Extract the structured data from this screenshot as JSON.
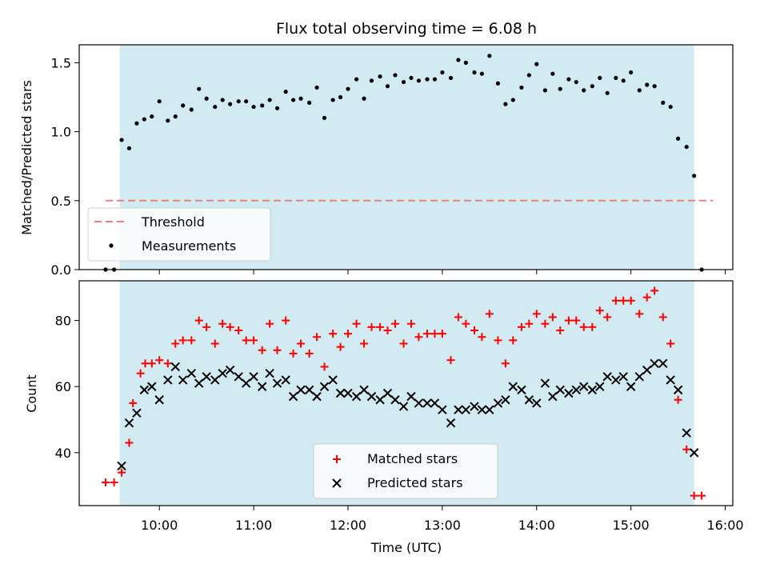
{
  "chart_data": {
    "type": "scatter",
    "title": "Flux total observing time = 6.08 h",
    "xlabel": "Time (UTC)",
    "x_ticks": [
      "10:00",
      "11:00",
      "12:00",
      "13:00",
      "14:00",
      "15:00",
      "16:00"
    ],
    "x_range_hours": [
      9.15,
      16.08
    ],
    "shaded_window_hours": [
      9.58,
      15.67
    ],
    "colors": {
      "shade": "#add8e6",
      "threshold": "#f08080",
      "matched": "#ff0000",
      "predicted": "#000000",
      "measurement": "#000000"
    },
    "panels": [
      {
        "ylabel": "Matched/Predicted stars",
        "ylim": [
          0,
          1.63
        ],
        "y_ticks": [
          "0.0",
          "0.5",
          "1.0",
          "1.5"
        ],
        "legend_position": "lower-left",
        "threshold": {
          "name": "Threshold",
          "value": 0.5,
          "x_range_hours": [
            9.43,
            15.87
          ]
        },
        "series": [
          {
            "name": "Measurements",
            "marker": "dot",
            "x_hours": [
              9.43,
              9.52,
              9.6,
              9.68,
              9.76,
              9.84,
              9.92,
              10.0,
              10.09,
              10.17,
              10.25,
              10.34,
              10.42,
              10.5,
              10.59,
              10.67,
              10.75,
              10.84,
              10.92,
              11.0,
              11.09,
              11.17,
              11.25,
              11.34,
              11.42,
              11.5,
              11.59,
              11.67,
              11.75,
              11.84,
              11.92,
              12.0,
              12.09,
              12.17,
              12.25,
              12.34,
              12.42,
              12.5,
              12.59,
              12.67,
              12.75,
              12.84,
              12.92,
              13.0,
              13.09,
              13.17,
              13.25,
              13.34,
              13.42,
              13.5,
              13.59,
              13.67,
              13.75,
              13.84,
              13.92,
              14.0,
              14.09,
              14.17,
              14.25,
              14.34,
              14.42,
              14.5,
              14.59,
              14.67,
              14.75,
              14.84,
              14.92,
              15.0,
              15.09,
              15.17,
              15.25,
              15.34,
              15.42,
              15.5,
              15.59,
              15.67,
              15.75
            ],
            "values": [
              0.0,
              0.0,
              0.94,
              0.88,
              1.06,
              1.09,
              1.11,
              1.22,
              1.08,
              1.11,
              1.19,
              1.16,
              1.31,
              1.24,
              1.18,
              1.23,
              1.2,
              1.22,
              1.22,
              1.18,
              1.19,
              1.23,
              1.17,
              1.29,
              1.23,
              1.24,
              1.21,
              1.32,
              1.1,
              1.23,
              1.25,
              1.31,
              1.38,
              1.24,
              1.37,
              1.4,
              1.33,
              1.41,
              1.36,
              1.39,
              1.37,
              1.38,
              1.38,
              1.43,
              1.39,
              1.52,
              1.5,
              1.43,
              1.42,
              1.55,
              1.35,
              1.2,
              1.23,
              1.32,
              1.41,
              1.49,
              1.3,
              1.42,
              1.31,
              1.38,
              1.36,
              1.3,
              1.33,
              1.39,
              1.28,
              1.39,
              1.37,
              1.43,
              1.3,
              1.34,
              1.33,
              1.21,
              1.18,
              0.95,
              0.89,
              0.68,
              0.0
            ]
          }
        ]
      },
      {
        "ylabel": "Count",
        "ylim": [
          24,
          92
        ],
        "y_ticks": [
          "40",
          "60",
          "80"
        ],
        "legend_position": "lower-center",
        "series": [
          {
            "name": "Matched stars",
            "marker": "plus",
            "x_hours": [
              9.43,
              9.52,
              9.6,
              9.68,
              9.72,
              9.8,
              9.85,
              9.92,
              10.0,
              10.09,
              10.17,
              10.25,
              10.34,
              10.42,
              10.5,
              10.59,
              10.67,
              10.75,
              10.84,
              10.92,
              11.0,
              11.09,
              11.17,
              11.25,
              11.34,
              11.42,
              11.5,
              11.59,
              11.67,
              11.75,
              11.84,
              11.92,
              12.0,
              12.09,
              12.17,
              12.25,
              12.34,
              12.42,
              12.5,
              12.59,
              12.67,
              12.75,
              12.84,
              12.92,
              13.0,
              13.09,
              13.17,
              13.25,
              13.34,
              13.42,
              13.5,
              13.59,
              13.67,
              13.75,
              13.84,
              13.92,
              14.0,
              14.09,
              14.17,
              14.25,
              14.34,
              14.42,
              14.5,
              14.59,
              14.67,
              14.75,
              14.84,
              14.92,
              15.0,
              15.09,
              15.17,
              15.25,
              15.34,
              15.42,
              15.5,
              15.59,
              15.67,
              15.75
            ],
            "values": [
              31,
              31,
              34,
              43,
              55,
              64,
              67,
              67,
              68,
              67,
              73,
              74,
              74,
              80,
              78,
              73,
              79,
              78,
              77,
              74,
              74,
              71,
              79,
              71,
              80,
              70,
              73,
              70,
              75,
              66,
              76,
              72,
              76,
              79,
              73,
              78,
              78,
              77,
              79,
              73,
              79,
              75,
              76,
              76,
              76,
              68,
              81,
              79,
              77,
              75,
              82,
              74,
              67,
              74,
              78,
              79,
              82,
              79,
              81,
              77,
              80,
              80,
              78,
              78,
              83,
              81,
              86,
              86,
              86,
              82,
              87,
              89,
              81,
              73,
              56,
              41,
              27,
              27
            ]
          },
          {
            "name": "Predicted stars",
            "marker": "x",
            "x_hours": [
              9.6,
              9.68,
              9.76,
              9.84,
              9.92,
              10.0,
              10.09,
              10.17,
              10.25,
              10.34,
              10.42,
              10.5,
              10.59,
              10.67,
              10.75,
              10.84,
              10.92,
              11.0,
              11.09,
              11.17,
              11.25,
              11.34,
              11.42,
              11.5,
              11.59,
              11.67,
              11.75,
              11.84,
              11.92,
              12.0,
              12.09,
              12.17,
              12.25,
              12.34,
              12.42,
              12.5,
              12.59,
              12.67,
              12.75,
              12.84,
              12.92,
              13.0,
              13.09,
              13.17,
              13.25,
              13.34,
              13.42,
              13.5,
              13.59,
              13.67,
              13.75,
              13.84,
              13.92,
              14.0,
              14.09,
              14.17,
              14.25,
              14.34,
              14.42,
              14.5,
              14.59,
              14.67,
              14.75,
              14.84,
              14.92,
              15.0,
              15.09,
              15.17,
              15.25,
              15.34,
              15.42,
              15.5,
              15.59,
              15.67
            ],
            "values": [
              36,
              49,
              52,
              59,
              60,
              56,
              62,
              66,
              62,
              64,
              61,
              63,
              62,
              64,
              65,
              63,
              61,
              63,
              60,
              64,
              61,
              62,
              57,
              59,
              59,
              57,
              60,
              62,
              58,
              58,
              57,
              59,
              57,
              56,
              58,
              56,
              54,
              57,
              55,
              55,
              55,
              53,
              49,
              53,
              53,
              54,
              53,
              53,
              55,
              56,
              60,
              59,
              56,
              55,
              61,
              57,
              59,
              58,
              59,
              60,
              59,
              60,
              63,
              62,
              63,
              60,
              63,
              65,
              67,
              67,
              62,
              59,
              46,
              40
            ]
          }
        ]
      }
    ]
  }
}
